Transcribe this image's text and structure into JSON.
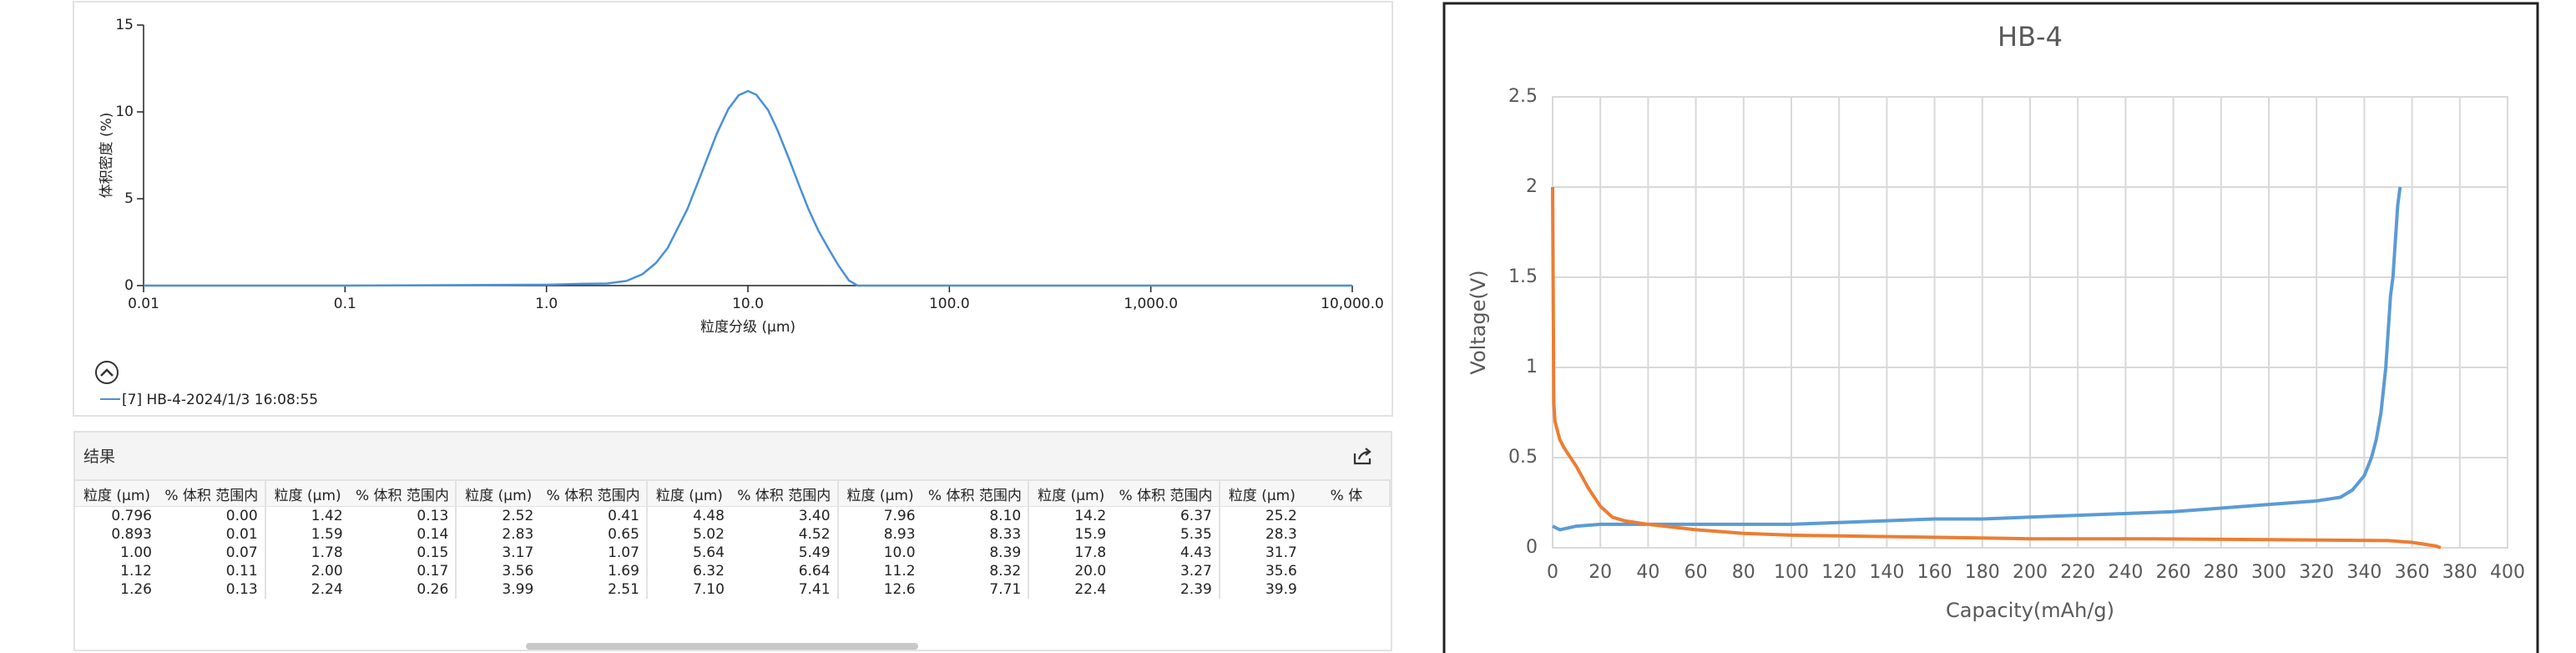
{
  "chart_data": [
    {
      "type": "line",
      "xlabel": "粒度分级 (μm)",
      "ylabel": "体积密度 (%)",
      "xscale": "log",
      "xlim": [
        0.01,
        10000
      ],
      "xticks": [
        0.01,
        0.1,
        {
          "value": 1,
          "label": "1.0"
        },
        {
          "value": 10,
          "label": "10.0"
        },
        {
          "value": 100,
          "label": "100.0"
        },
        {
          "value": 1000,
          "label": "1,000.0"
        },
        {
          "value": 10000,
          "label": "10,000.0"
        }
      ],
      "ylim": [
        0,
        15
      ],
      "yticks": [
        0,
        5,
        10,
        15
      ],
      "grid": false,
      "series": [
        {
          "name": "[7] HB-4-2024/1/3 16:08:55",
          "color": "#4a90d9",
          "x": [
            0.01,
            0.1,
            1,
            1.5,
            2,
            2.5,
            3,
            3.5,
            4,
            5,
            6,
            7,
            8,
            9,
            10,
            11,
            12.6,
            14,
            16,
            18,
            20,
            22.4,
            25,
            28,
            31.7,
            35,
            40,
            100,
            1000,
            10000
          ],
          "values": [
            0,
            0,
            0.05,
            0.1,
            0.12,
            0.27,
            0.66,
            1.31,
            2.17,
            4.39,
            6.73,
            8.74,
            10.17,
            10.96,
            11.2,
            10.99,
            10.1,
            8.97,
            7.29,
            5.73,
            4.39,
            3.15,
            2.17,
            1.2,
            0.3,
            0,
            0,
            0,
            0,
            0
          ]
        }
      ]
    },
    {
      "type": "line",
      "title": "HB-4",
      "xlabel": "Capacity(mAh/g)",
      "ylabel": "Voltage(V)",
      "xlim": [
        0,
        400
      ],
      "xticks": [
        0,
        20,
        40,
        60,
        80,
        100,
        120,
        140,
        160,
        180,
        200,
        220,
        240,
        260,
        280,
        300,
        320,
        340,
        360,
        380,
        400
      ],
      "ylim": [
        0,
        2.5
      ],
      "yticks": [
        0,
        0.5,
        1,
        1.5,
        2,
        2.5
      ],
      "grid": true,
      "series": [
        {
          "color": "#5b9bd5",
          "x": [
            0,
            3,
            10,
            20,
            40,
            60,
            80,
            100,
            120,
            140,
            160,
            180,
            200,
            220,
            240,
            260,
            280,
            300,
            320,
            330,
            335,
            340,
            343,
            345,
            347,
            349,
            350,
            351,
            352,
            353,
            354,
            355
          ],
          "values": [
            0.12,
            0.1,
            0.12,
            0.13,
            0.13,
            0.13,
            0.13,
            0.13,
            0.14,
            0.15,
            0.16,
            0.16,
            0.17,
            0.18,
            0.19,
            0.2,
            0.22,
            0.24,
            0.26,
            0.28,
            0.32,
            0.4,
            0.5,
            0.6,
            0.75,
            1.0,
            1.2,
            1.4,
            1.5,
            1.7,
            1.9,
            2.0
          ]
        },
        {
          "color": "#ed7d31",
          "x": [
            0,
            0.5,
            1,
            3,
            5,
            10,
            15,
            20,
            25,
            30,
            40,
            60,
            80,
            100,
            150,
            200,
            250,
            300,
            350,
            360,
            370,
            372
          ],
          "values": [
            2.0,
            0.8,
            0.7,
            0.6,
            0.55,
            0.45,
            0.33,
            0.23,
            0.17,
            0.15,
            0.13,
            0.1,
            0.08,
            0.07,
            0.06,
            0.05,
            0.05,
            0.045,
            0.04,
            0.03,
            0.01,
            0
          ]
        }
      ]
    }
  ],
  "results_table": {
    "title": "结果",
    "columns": [
      "粒度 (μm)",
      "% 体积 范围内",
      "粒度 (μm)",
      "% 体积 范围内",
      "粒度 (μm)",
      "% 体积 范围内",
      "粒度 (μm)",
      "% 体积 范围内",
      "粒度 (μm)",
      "% 体积 范围内",
      "粒度 (μm)",
      "% 体积 范围内",
      "粒度 (μm)",
      "% 体"
    ],
    "rows": [
      [
        "0.796",
        "0.00",
        "1.42",
        "0.13",
        "2.52",
        "0.41",
        "4.48",
        "3.40",
        "7.96",
        "8.10",
        "14.2",
        "6.37",
        "25.2"
      ],
      [
        "0.893",
        "0.01",
        "1.59",
        "0.14",
        "2.83",
        "0.65",
        "5.02",
        "4.52",
        "8.93",
        "8.33",
        "15.9",
        "5.35",
        "28.3"
      ],
      [
        "1.00",
        "0.07",
        "1.78",
        "0.15",
        "3.17",
        "1.07",
        "5.64",
        "5.49",
        "10.0",
        "8.39",
        "17.8",
        "4.43",
        "31.7"
      ],
      [
        "1.12",
        "0.11",
        "2.00",
        "0.17",
        "3.56",
        "1.69",
        "6.32",
        "6.64",
        "11.2",
        "8.32",
        "20.0",
        "3.27",
        "35.6"
      ],
      [
        "1.26",
        "0.13",
        "2.24",
        "0.26",
        "3.99",
        "2.51",
        "7.10",
        "7.41",
        "12.6",
        "7.71",
        "22.4",
        "2.39",
        "39.9"
      ]
    ]
  }
}
